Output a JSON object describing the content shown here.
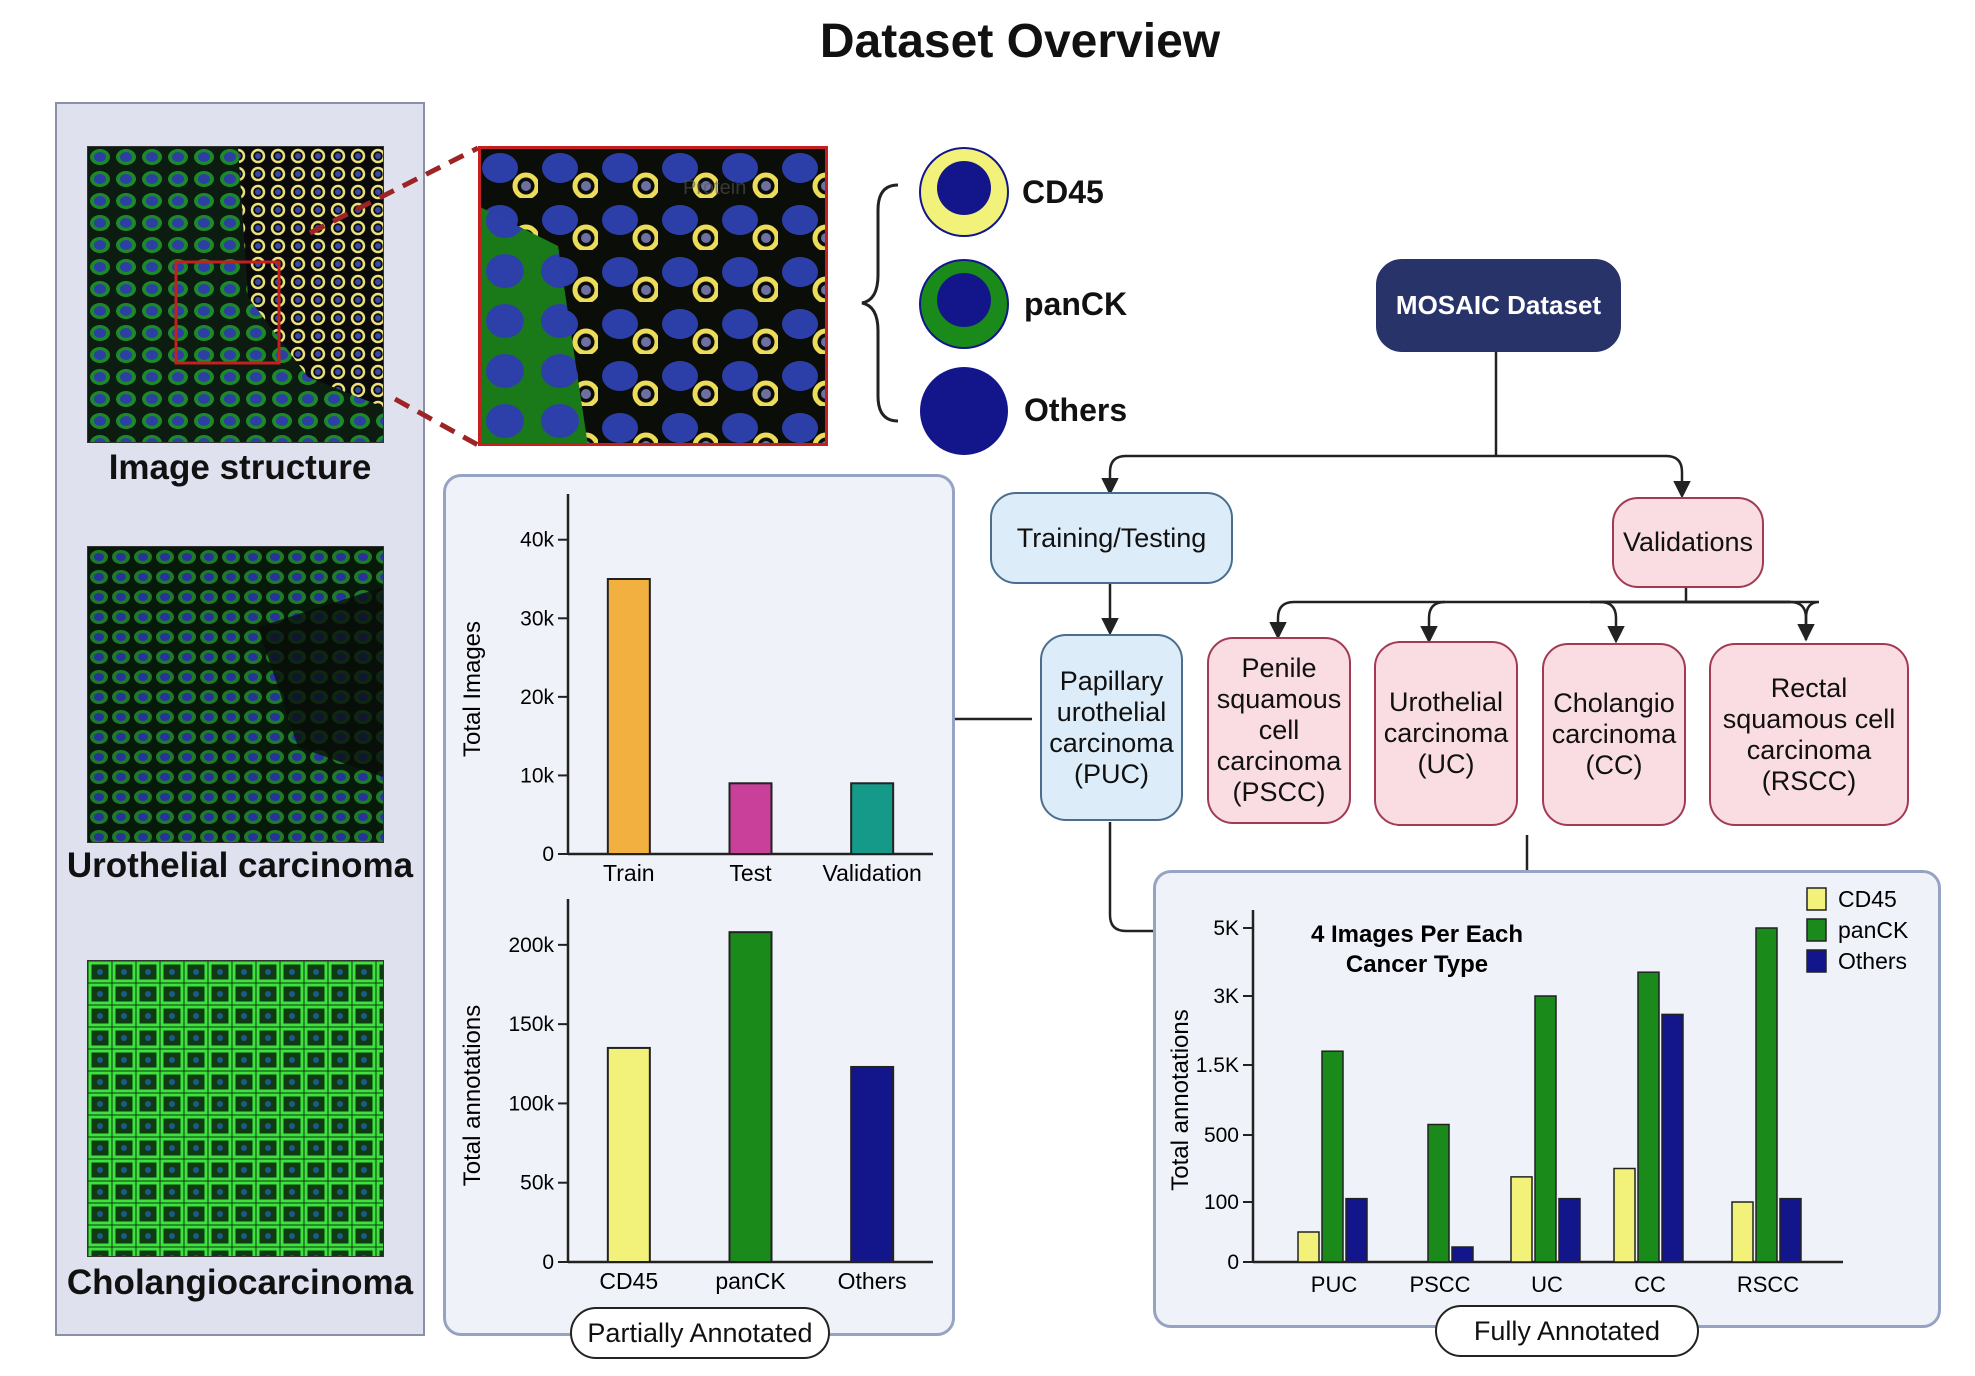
{
  "title": "Dataset Overview",
  "captions": {
    "image_structure": "Image structure",
    "urothelial": "Urothelial carcinoma",
    "cholangio": "Cholangiocarcinoma",
    "inset_overlay": "Protein"
  },
  "legend": {
    "cd45": "CD45",
    "panck": "panCK",
    "others": "Others"
  },
  "flow": {
    "root": "MOSAIC Dataset",
    "training": "Training/Testing",
    "validations": "Validations",
    "puc": "Papillary urothelial carcinoma (PUC)",
    "pscc": "Penile squamous cell carcinoma (PSCC)",
    "uc": "Urothelial carcinoma (UC)",
    "cc": "Cholangio carcinoma (CC)",
    "rscc": "Rectal squamous cell carcinoma (RSCC)"
  },
  "panels": {
    "partial": "Partially Annotated",
    "full": "Fully Annotated"
  },
  "colors": {
    "cd45": "#f2f27a",
    "panck": "#1a8a1a",
    "others": "#13168a",
    "train": "#f2b040",
    "test": "#c8409a",
    "validation": "#159a8a",
    "root_box": "#28336a"
  },
  "chart_data": [
    {
      "type": "bar",
      "categories": [
        "Train",
        "Test",
        "Validation"
      ],
      "values": [
        35000,
        9000,
        9000
      ],
      "ylabel": "Total Images",
      "yticks": [
        "0",
        "10k",
        "20k",
        "30k",
        "40k"
      ],
      "ylim": [
        0,
        42000
      ]
    },
    {
      "type": "bar",
      "categories": [
        "CD45",
        "panCK",
        "Others"
      ],
      "values": [
        135000,
        208000,
        123000
      ],
      "ylabel": "Total annotations",
      "yticks": [
        "0",
        "50k",
        "100k",
        "150k",
        "200k"
      ],
      "ylim": [
        0,
        210000
      ]
    },
    {
      "type": "bar",
      "title": "4 Images Per Each Cancer Type",
      "categories": [
        "PUC",
        "PSCC",
        "UC",
        "CC",
        "RSCC"
      ],
      "ylabel": "Total annotations",
      "yticks": [
        "0",
        "100",
        "500",
        "1.5K",
        "3K",
        "5K"
      ],
      "series": [
        {
          "name": "CD45",
          "values": [
            50,
            0,
            250,
            300,
            100
          ]
        },
        {
          "name": "panCK",
          "values": [
            1800,
            650,
            3000,
            3700,
            5000
          ]
        },
        {
          "name": "Others",
          "values": [
            120,
            25,
            120,
            2600,
            120
          ]
        }
      ],
      "legend": "top-right"
    }
  ]
}
